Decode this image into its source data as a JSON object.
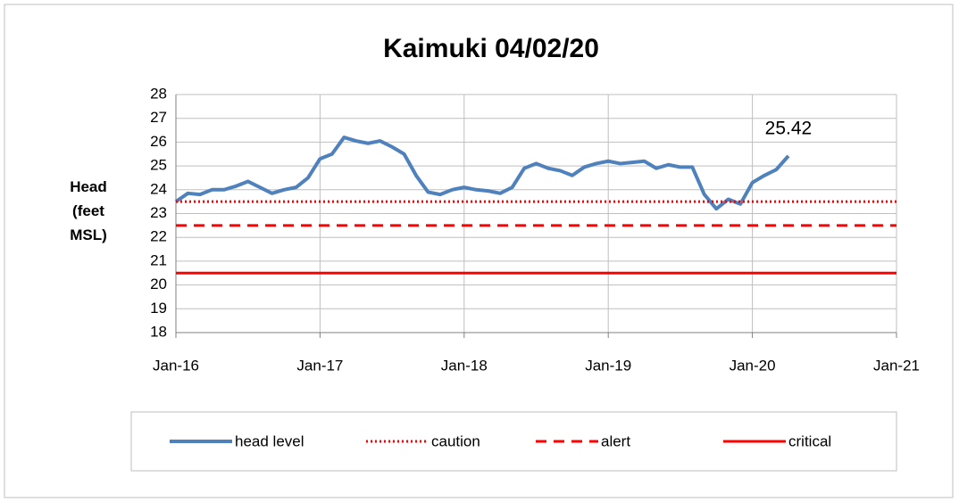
{
  "chart_data": {
    "type": "line",
    "title": "Kaimuki 04/02/20",
    "y_label": "Head (feet MSL)",
    "xlim": [
      "Jan-16",
      "Jan-21"
    ],
    "xticks": [
      "Jan-16",
      "Jan-17",
      "Jan-18",
      "Jan-19",
      "Jan-20",
      "Jan-21"
    ],
    "ylim": [
      18,
      28
    ],
    "yticks": [
      18,
      19,
      20,
      21,
      22,
      23,
      24,
      25,
      26,
      27,
      28
    ],
    "grid": true,
    "legend": "bottom",
    "series": [
      {
        "name": "head level",
        "color": "#4f81bd",
        "style": "solid",
        "x": [
          "Jan-16",
          "Feb-16",
          "Mar-16",
          "Apr-16",
          "May-16",
          "Jun-16",
          "Jul-16",
          "Aug-16",
          "Sep-16",
          "Oct-16",
          "Nov-16",
          "Dec-16",
          "Jan-17",
          "Feb-17",
          "Mar-17",
          "Apr-17",
          "May-17",
          "Jun-17",
          "Jul-17",
          "Aug-17",
          "Sep-17",
          "Oct-17",
          "Nov-17",
          "Dec-17",
          "Jan-18",
          "Feb-18",
          "Mar-18",
          "Apr-18",
          "May-18",
          "Jun-18",
          "Jul-18",
          "Aug-18",
          "Sep-18",
          "Oct-18",
          "Nov-18",
          "Dec-18",
          "Jan-19",
          "Feb-19",
          "Mar-19",
          "Apr-19",
          "May-19",
          "Jun-19",
          "Jul-19",
          "Aug-19",
          "Sep-19",
          "Oct-19",
          "Nov-19",
          "Dec-19",
          "Jan-20",
          "Feb-20",
          "Mar-20",
          "Apr-20"
        ],
        "values": [
          23.5,
          23.85,
          23.8,
          24.0,
          24.0,
          24.15,
          24.35,
          24.1,
          23.85,
          24.0,
          24.1,
          24.5,
          25.3,
          25.5,
          26.2,
          26.05,
          25.95,
          26.05,
          25.8,
          25.5,
          24.6,
          23.9,
          23.8,
          24.0,
          24.1,
          24.0,
          23.95,
          23.85,
          24.1,
          24.9,
          25.1,
          24.9,
          24.8,
          24.6,
          24.95,
          25.1,
          25.2,
          25.1,
          25.15,
          25.2,
          24.9,
          25.05,
          24.95,
          24.95,
          23.8,
          23.2,
          23.6,
          23.4,
          24.3,
          24.6,
          24.85,
          25.42
        ]
      },
      {
        "name": "caution",
        "color": "#ff0000",
        "style": "dotted",
        "x": [
          "Jan-16",
          "Jan-21"
        ],
        "values": [
          23.5,
          23.5
        ]
      },
      {
        "name": "alert",
        "color": "#ff0000",
        "style": "dashed",
        "x": [
          "Jan-16",
          "Jan-21"
        ],
        "values": [
          22.5,
          22.5
        ]
      },
      {
        "name": "critical",
        "color": "#ff0000",
        "style": "solid",
        "x": [
          "Jan-16",
          "Jan-21"
        ],
        "values": [
          20.5,
          20.5
        ]
      }
    ],
    "annotations": [
      {
        "text": "25.42",
        "x": "Apr-20",
        "y": 25.42
      }
    ]
  }
}
